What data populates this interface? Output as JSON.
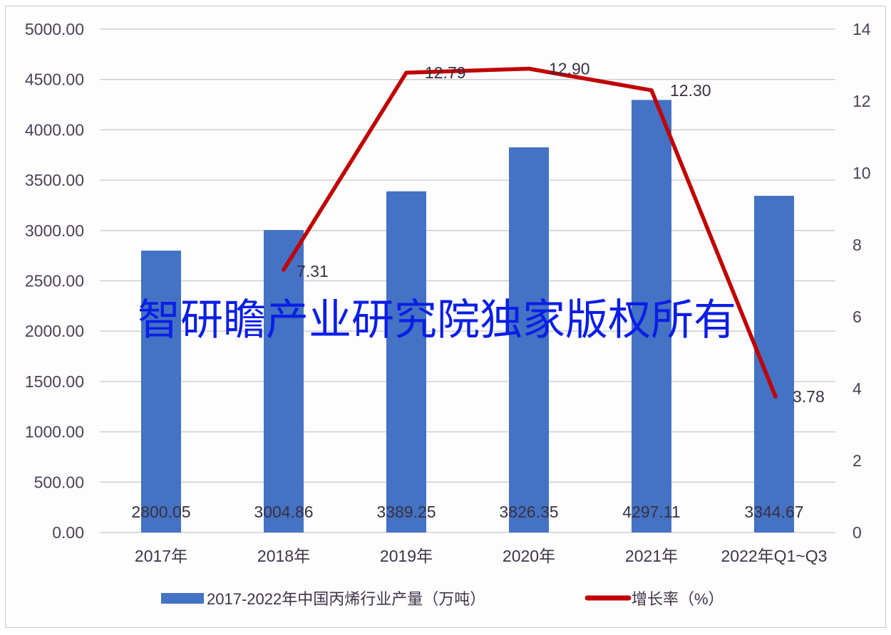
{
  "chart_data": {
    "type": "bar+line",
    "title": "",
    "categories": [
      "2017年",
      "2018年",
      "2019年",
      "2020年",
      "2021年",
      "2022年Q1~Q3"
    ],
    "series": [
      {
        "name": "2017-2022年中国丙烯行业产量（万吨）",
        "type": "bar",
        "axis": "left",
        "color": "#4472C4",
        "values": [
          2800.05,
          3004.86,
          3389.25,
          3826.35,
          4297.11,
          3344.67
        ],
        "labels": [
          "2800.05",
          "3004.86",
          "3389.25",
          "3826.35",
          "4297.11",
          "3344.67"
        ]
      },
      {
        "name": "增长率（%）",
        "type": "line",
        "axis": "right",
        "color": "#C00000",
        "values": [
          null,
          7.31,
          12.79,
          12.9,
          12.3,
          3.78
        ],
        "labels": [
          "",
          "7.31",
          "12.79",
          "12.90",
          "12.30",
          "3.78"
        ]
      }
    ],
    "left_axis": {
      "ylim": [
        0,
        5000
      ],
      "ticks": [
        "0.00",
        "500.00",
        "1000.00",
        "1500.00",
        "2000.00",
        "2500.00",
        "3000.00",
        "3500.00",
        "4000.00",
        "4500.00",
        "5000.00"
      ]
    },
    "right_axis": {
      "ylim": [
        0,
        14
      ],
      "ticks": [
        "0",
        "2",
        "4",
        "6",
        "8",
        "10",
        "12",
        "14"
      ]
    },
    "grid": true,
    "legend_position": "bottom",
    "xlabel": "",
    "ylabel": ""
  },
  "watermark": "智研瞻产业研究院独家版权所有",
  "legend": {
    "bar_label": "2017-2022年中国丙烯行业产量（万吨）",
    "line_label": "增长率（%）"
  },
  "colors": {
    "bar": "#4472C4",
    "line": "#C00000",
    "grid": "#c8c8cc",
    "watermark": "#0a1ee6"
  }
}
